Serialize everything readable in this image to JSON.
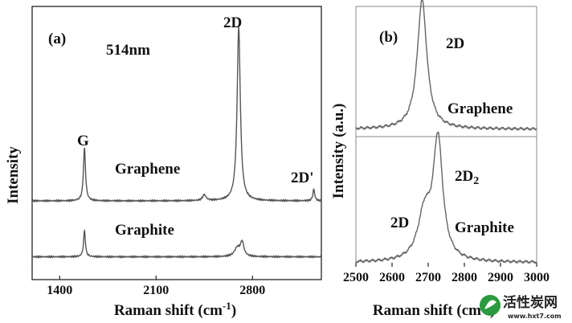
{
  "chart_data": [
    {
      "type": "line",
      "panel_label": "(a)",
      "wavelength_label": "514nm",
      "xlabel": "Raman shift (cm",
      "xlabel_sup": "-1",
      "xlabel_end": ")",
      "ylabel": "Intensity",
      "xlim": [
        1200,
        3300
      ],
      "xticks": [
        "1400",
        "2100",
        "2800"
      ],
      "xtick_values": [
        1400,
        2100,
        2800
      ],
      "series": [
        {
          "name": "Graphene",
          "baseline": 0.0,
          "peaks": [
            {
              "x": 1580,
              "height": 0.55,
              "width": 9
            },
            {
              "x": 2450,
              "height": 0.06,
              "width": 15
            },
            {
              "x": 2700,
              "height": 1.8,
              "width": 14
            },
            {
              "x": 3245,
              "height": 0.12,
              "width": 8
            }
          ]
        },
        {
          "name": "Graphite",
          "baseline": -0.58,
          "peaks": [
            {
              "x": 1580,
              "height": 0.27,
              "width": 8
            },
            {
              "x": 2690,
              "height": 0.09,
              "width": 25
            },
            {
              "x": 2725,
              "height": 0.14,
              "width": 15
            }
          ]
        }
      ],
      "annotations": [
        "G",
        "2D",
        "2D'",
        "Graphene",
        "Graphite"
      ]
    },
    {
      "type": "line",
      "panel_label": "(b)",
      "xlabel": "Raman shift (cm",
      "xlabel_sup": "-1",
      "xlabel_end": ")",
      "ylabel": "Intensity (a.u.)",
      "xlim": [
        2500,
        3000
      ],
      "xticks": [
        "2500",
        "2600",
        "2700",
        "2800",
        "2900",
        "3000"
      ],
      "xtick_values": [
        2500,
        2600,
        2700,
        2800,
        2900,
        3000
      ],
      "series": [
        {
          "name": "Graphene",
          "baseline": 0.62,
          "peaks": [
            {
              "x": 2683,
              "height": 0.62,
              "width": 16
            }
          ]
        },
        {
          "name": "Graphite",
          "baseline": 0.02,
          "peaks": [
            {
              "x": 2690,
              "height": 0.22,
              "width": 22
            },
            {
              "x": 2727,
              "height": 0.57,
              "width": 16
            }
          ]
        }
      ],
      "annotations": [
        "2D",
        "Graphene",
        "2D",
        "2D",
        "Graphite"
      ],
      "annotation_sub": "2"
    }
  ],
  "watermark": {
    "text": "活性炭网",
    "url": "www.hxt7.com"
  }
}
